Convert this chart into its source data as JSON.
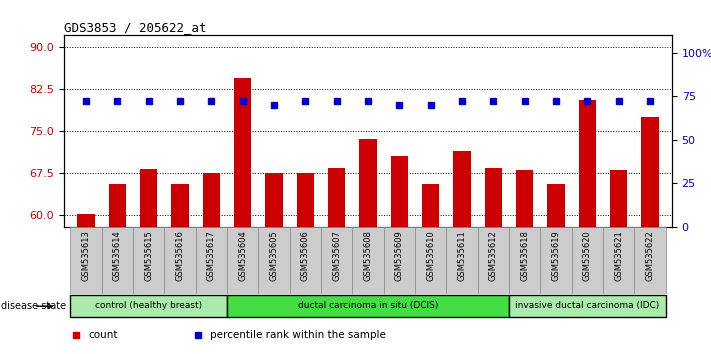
{
  "title": "GDS3853 / 205622_at",
  "samples": [
    "GSM535613",
    "GSM535614",
    "GSM535615",
    "GSM535616",
    "GSM535617",
    "GSM535604",
    "GSM535605",
    "GSM535606",
    "GSM535607",
    "GSM535608",
    "GSM535609",
    "GSM535610",
    "GSM535611",
    "GSM535612",
    "GSM535618",
    "GSM535619",
    "GSM535620",
    "GSM535621",
    "GSM535622"
  ],
  "counts": [
    60.3,
    65.5,
    68.2,
    65.5,
    67.5,
    84.5,
    67.5,
    67.5,
    68.5,
    73.5,
    70.5,
    65.5,
    71.5,
    68.5,
    68.0,
    65.5,
    80.5,
    68.0,
    77.5
  ],
  "percentiles": [
    72,
    72,
    72,
    72,
    72,
    72,
    70,
    72,
    72,
    72,
    70,
    70,
    72,
    72,
    72,
    72,
    72,
    72,
    72
  ],
  "ylim_left": [
    58,
    92
  ],
  "yticks_left": [
    60,
    67.5,
    75,
    82.5,
    90
  ],
  "ylim_right": [
    0,
    110
  ],
  "yticks_right": [
    0,
    25,
    50,
    75,
    100
  ],
  "ytick_labels_right": [
    "0",
    "25",
    "50",
    "75",
    "100%"
  ],
  "bar_color": "#cc0000",
  "dot_color": "#0000cc",
  "groups": [
    {
      "label": "control (healthy breast)",
      "start": 0,
      "end": 5,
      "color": "#aaeaaa"
    },
    {
      "label": "ductal carcinoma in situ (DCIS)",
      "start": 5,
      "end": 14,
      "color": "#44dd44"
    },
    {
      "label": "invasive ductal carcinoma (IDC)",
      "start": 14,
      "end": 19,
      "color": "#aaeaaa"
    }
  ],
  "disease_state_label": "disease state",
  "legend_count_label": "count",
  "legend_percentile_label": "percentile rank within the sample",
  "title_color": "#000000",
  "left_tick_color": "#cc0000",
  "right_tick_color": "#0000cc",
  "bg_color": "#ffffff",
  "tick_bg_color": "#cccccc"
}
